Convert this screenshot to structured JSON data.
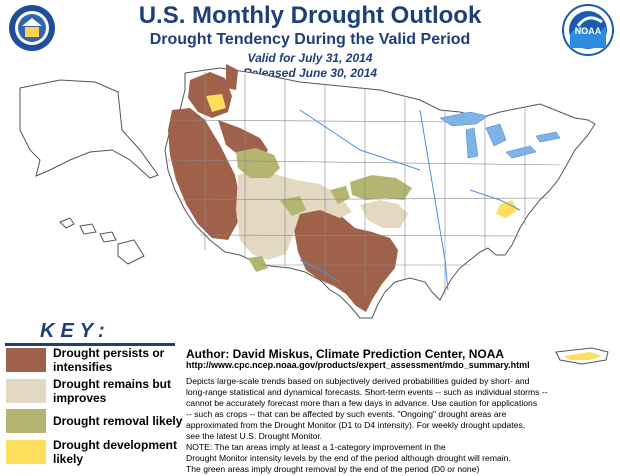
{
  "header": {
    "title": "U.S. Monthly Drought Outlook",
    "subtitle": "Drought Tendency During the Valid Period",
    "valid": "Valid for July 31, 2014",
    "released": "Released June 30, 2014"
  },
  "logos": {
    "left": "Department of Commerce seal",
    "right": "NOAA",
    "right_text": "NOAA"
  },
  "key": {
    "title": "KEY:",
    "items": [
      {
        "label": "Drought persists or intensifies",
        "color": "#a0614a"
      },
      {
        "label": "Drought remains but improves",
        "color": "#e3d9c2"
      },
      {
        "label": "Drought removal likely",
        "color": "#b5b572"
      },
      {
        "label": "Drought development likely",
        "color": "#ffde5e"
      }
    ]
  },
  "author": "Author: David Miskus, Climate Prediction Center, NOAA",
  "url": "http://www.cpc.ncep.noaa.gov/products/expert_assessment/mdo_summary.html",
  "notes": [
    "Depicts large-scale trends based on subjectively derived probabilities guided by short- and",
    "long-range statistical and dynamical forecasts. Short-term events -- such as individual storms --",
    "cannot be accurately forecast more than a few days in advance. Use caution for applications",
    "-- such as crops -- that can be affected by such events. \"Ongoing\" drought areas are",
    "approximated from the Drought Monitor (D1 to D4 intensity). For weekly drought updates,",
    "see the latest U.S. Drought Monitor.",
    "NOTE: The tan areas imply at least a 1-category improvement in the",
    "Drought Monitor intensity levels by the end of the period although drought will remain.",
    "The green areas imply drought removal by the end of the period (D0 or none)"
  ]
}
